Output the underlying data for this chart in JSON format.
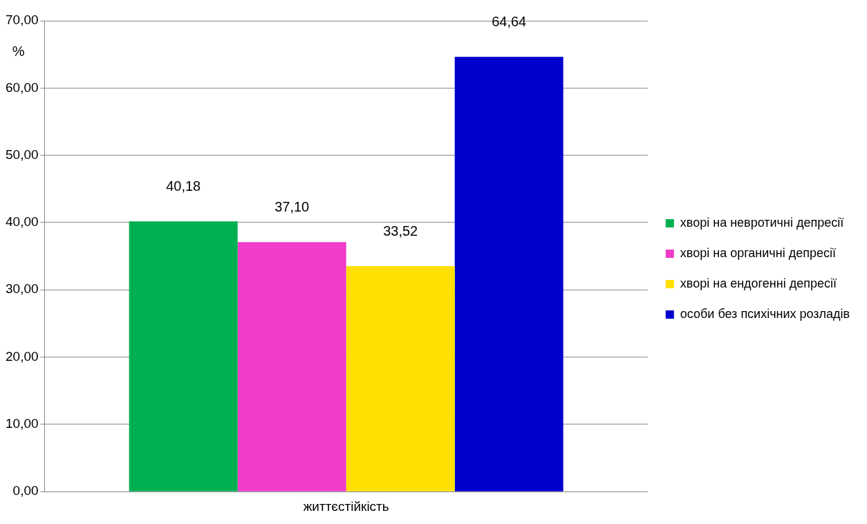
{
  "chart_data": {
    "type": "bar",
    "ylabel": "%",
    "categories": [
      "життєстійкість"
    ],
    "series": [
      {
        "name": "хворі на невротичні депресії",
        "color": "#00b050",
        "values": [
          40.18
        ],
        "value_labels": [
          "40,18"
        ]
      },
      {
        "name": "хворі на органичні депресії",
        "color": "#f03cc8",
        "values": [
          37.1
        ],
        "value_labels": [
          "37,10"
        ]
      },
      {
        "name": "хворі на ендогенні депресії",
        "color": "#ffe000",
        "values": [
          33.52
        ],
        "value_labels": [
          "33,52"
        ]
      },
      {
        "name": "особи без психічних розладів",
        "color": "#0000cc",
        "values": [
          64.64
        ],
        "value_labels": [
          "64,64"
        ]
      }
    ],
    "ylim": [
      0,
      70
    ],
    "yticks": [
      {
        "value": 0,
        "label": "0,00"
      },
      {
        "value": 10,
        "label": "10,00"
      },
      {
        "value": 20,
        "label": "20,00"
      },
      {
        "value": 30,
        "label": "30,00"
      },
      {
        "value": 40,
        "label": "40,00"
      },
      {
        "value": 50,
        "label": "50,00"
      },
      {
        "value": 60,
        "label": "60,00"
      },
      {
        "value": 70,
        "label": "70,00"
      }
    ],
    "grid": "y",
    "legend": "right"
  }
}
